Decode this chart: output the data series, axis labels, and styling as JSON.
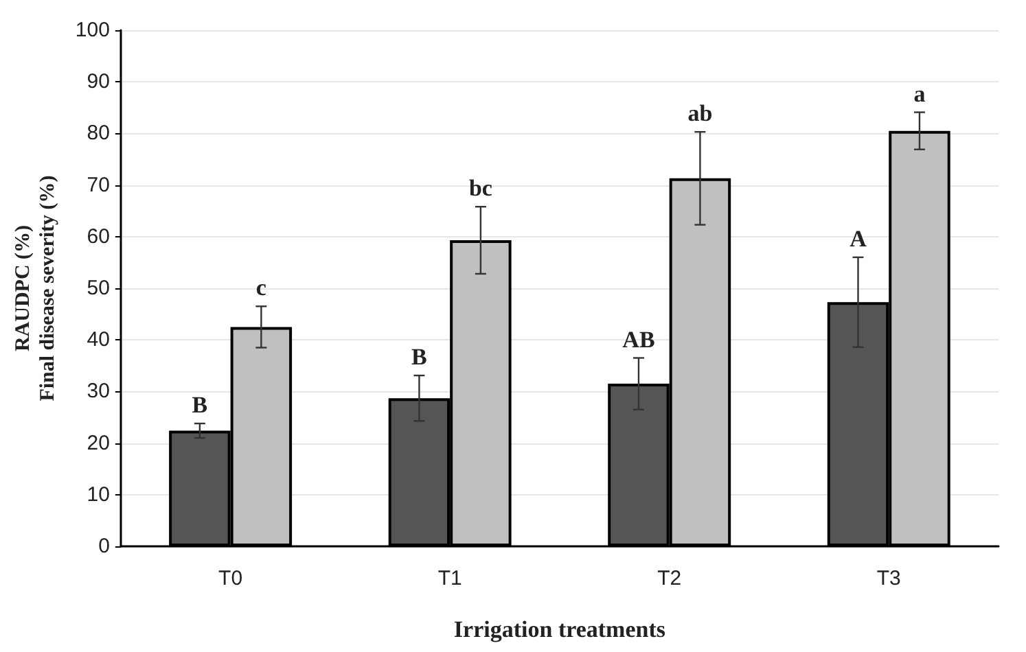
{
  "chart_data": {
    "type": "bar",
    "xlabel": "Irrigation treatments",
    "ylabel": "RAUDPC (%)\nFinal disease severity (%)",
    "categories": [
      "T0",
      "T1",
      "T2",
      "T3"
    ],
    "series": [
      {
        "color": "#555555",
        "values": [
          22.4,
          28.7,
          31.5,
          47.3
        ],
        "errors": [
          1.4,
          4.4,
          5,
          8.7
        ],
        "value_labels": [
          "B",
          "B",
          "AB",
          "A"
        ]
      },
      {
        "color": "#c0c0c0",
        "values": [
          42.5,
          59.3,
          71.3,
          80.5
        ],
        "errors": [
          4,
          6.5,
          9,
          3.6
        ],
        "value_labels": [
          "c",
          "bc",
          "ab",
          "a"
        ]
      }
    ],
    "ylim": [
      0,
      100
    ],
    "yticks": [
      0,
      10,
      20,
      30,
      40,
      50,
      60,
      70,
      80,
      90,
      100
    ],
    "grid": "y"
  }
}
